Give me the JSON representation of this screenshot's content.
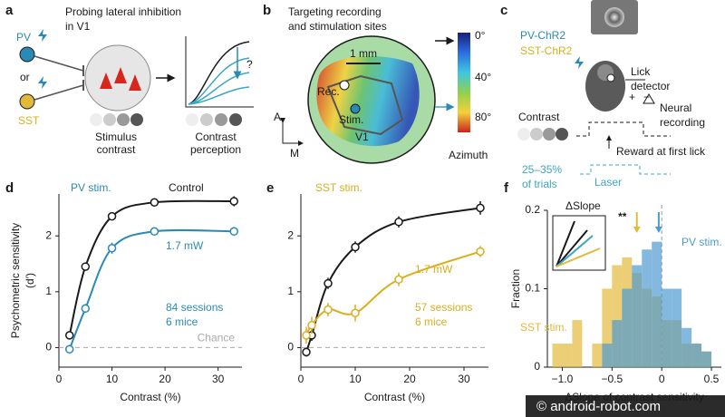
{
  "panel_a": {
    "letter": "a",
    "title": [
      "Probing lateral inhibition",
      "in V1"
    ],
    "pv": "PV",
    "or": "or",
    "sst": "SST",
    "stimulus": [
      "Stimulus",
      "contrast"
    ],
    "perception": [
      "Contrast",
      "perception"
    ],
    "question": "?"
  },
  "panel_b": {
    "letter": "b",
    "title": [
      "Targeting recording",
      "and stimulation sites"
    ],
    "scale": "1 mm",
    "rec": "Rec.",
    "stim": "Stim.",
    "area": "V1",
    "axis_a": "A",
    "axis_m": "M",
    "colorbar_ticks": [
      "0°",
      "40°",
      "80°"
    ],
    "colorbar_label": "Azimuth"
  },
  "panel_c": {
    "letter": "c",
    "lines": [
      "PV-ChR2",
      "SST-ChR2"
    ],
    "lick": [
      "Lick",
      "detector"
    ],
    "recording": [
      "Neural",
      "recording"
    ],
    "plus": "+",
    "minus": "−",
    "contrast": "Contrast",
    "reward": "Reward at first lick",
    "fraction": [
      "25–35%",
      "of trials"
    ],
    "laser": "Laser"
  },
  "chart_data": [
    {
      "type": "line",
      "label": "d",
      "xlabel": "Contrast (%)",
      "ylabel": [
        "Psychometric sensitivity",
        "(d′)"
      ],
      "x": [
        2,
        5,
        10,
        18,
        33
      ],
      "series": [
        {
          "name": "Control",
          "color": "#1a1a1a",
          "values": [
            0.22,
            1.45,
            2.35,
            2.6,
            2.62
          ],
          "errors": [
            0.06,
            0.06,
            0.07,
            0.06,
            0.09
          ]
        },
        {
          "name": "PV stim.",
          "color": "#2a8ab5",
          "values": [
            -0.03,
            0.7,
            1.78,
            2.08,
            2.08
          ],
          "errors": [
            0.08,
            0.08,
            0.1,
            0.06,
            0.08
          ]
        }
      ],
      "annotations": [
        "1.7 mW",
        "84 sessions",
        "6 mice"
      ],
      "chance": {
        "value": 0,
        "label": "Chance"
      },
      "xlim": [
        0,
        34.5
      ],
      "xticks": [
        0,
        10,
        20,
        30
      ],
      "ylim": [
        -0.35,
        2.75
      ],
      "yticks": [
        0,
        1,
        2
      ]
    },
    {
      "type": "line",
      "label": "e",
      "xlabel": "Contrast (%)",
      "x": [
        1,
        2,
        5,
        10,
        18,
        33
      ],
      "series": [
        {
          "color": "#1a1a1a",
          "values": [
            -0.08,
            0.22,
            1.15,
            1.8,
            2.25,
            2.5
          ],
          "errors": [
            0.08,
            0.1,
            0.1,
            0.1,
            0.1,
            0.12
          ]
        },
        {
          "name": "SST stim.",
          "color": "#d9ae1f",
          "values": [
            0.22,
            0.4,
            0.68,
            0.62,
            1.22,
            1.72
          ],
          "errors": [
            0.15,
            0.15,
            0.12,
            0.15,
            0.12,
            0.1
          ]
        }
      ],
      "annotations": [
        "1.7 mW",
        "57 sessions",
        "6 mice"
      ],
      "chance": 0,
      "xlim": [
        0,
        34.5
      ],
      "xticks": [
        0,
        10,
        20,
        30
      ],
      "ylim": [
        -0.35,
        2.75
      ],
      "yticks": [
        0,
        1,
        2
      ]
    },
    {
      "type": "histogram",
      "label": "f",
      "xlabel": "ΔSlope of contrast sensitivity",
      "ylabel": "Fraction",
      "inset_label": "ΔSlope",
      "annotation": "**",
      "bins": [
        -1.1,
        -1,
        -0.9,
        -0.8,
        -0.7,
        -0.6,
        -0.5,
        -0.4,
        -0.3,
        -0.2,
        -0.1,
        0,
        0.1,
        0.2,
        0.3,
        0.4,
        0.5,
        0.6
      ],
      "series": [
        {
          "name": "SST stim.",
          "color": "#e3b93a",
          "values": [
            0.03,
            0.03,
            0.06,
            0,
            0.03,
            0.1,
            0.13,
            0.14,
            0.12,
            0.1,
            0.09,
            0.06,
            0.06,
            0.03,
            0.03,
            0.02,
            0
          ],
          "median": -0.25
        },
        {
          "name": "PV stim.",
          "color": "#4e9bd0",
          "values": [
            0,
            0,
            0,
            0,
            0,
            0.03,
            0.06,
            0.1,
            0.13,
            0.15,
            0.16,
            0.1,
            0.1,
            0.05,
            0.03,
            0.02,
            0
          ],
          "median": -0.03
        }
      ],
      "xlim": [
        -1.15,
        0.6
      ],
      "xticks": [
        {
          "value": -1,
          "label": "−1.0"
        },
        {
          "value": -0.5,
          "label": "−0.5"
        },
        0,
        0.5
      ],
      "ylim": [
        0,
        0.2
      ],
      "yticks": [
        0,
        0.1,
        0.2
      ]
    }
  ],
  "watermark": "© android-robot.com"
}
